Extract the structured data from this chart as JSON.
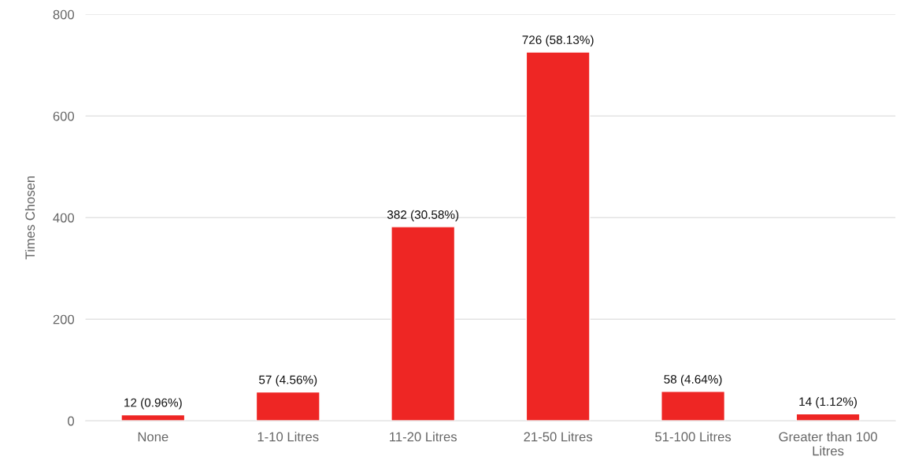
{
  "chart_data": {
    "type": "bar",
    "ylabel": "Times Chosen",
    "categories": [
      "None",
      "1-10 Litres",
      "11-20 Litres",
      "21-50 Litres",
      "51-100 Litres",
      "Greater than 100 Litres"
    ],
    "values": [
      12,
      57,
      382,
      726,
      58,
      14
    ],
    "value_labels": [
      "12 (0.96%)",
      "57 (4.56%)",
      "382 (30.58%)",
      "726 (58.13%)",
      "58 (4.64%)",
      "14 (1.12%)"
    ],
    "color": "#ee2624",
    "ylim": [
      0,
      800
    ],
    "yticks": [
      0,
      200,
      400,
      600,
      800
    ],
    "grid": "y"
  }
}
